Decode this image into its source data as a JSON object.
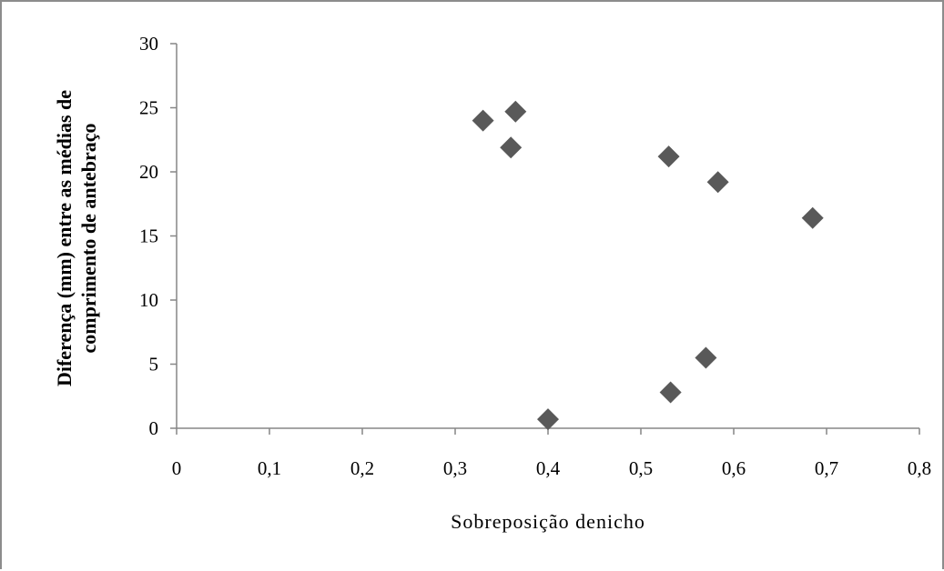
{
  "chart_data": {
    "type": "scatter",
    "xlabel": "Sobreposição denicho",
    "ylabel_lines": [
      "Diferença (mm) entre as médias de",
      "comprimento de antebraço"
    ],
    "xlim": [
      0,
      0.8
    ],
    "ylim": [
      0,
      30
    ],
    "x_ticks": [
      "0",
      "0,1",
      "0,2",
      "0,3",
      "0,4",
      "0,5",
      "0,6",
      "0,7",
      "0,8"
    ],
    "y_ticks": [
      "0",
      "5",
      "10",
      "15",
      "20",
      "25",
      "30"
    ],
    "grid": false,
    "marker": "diamond",
    "marker_color": "#595959",
    "points": [
      {
        "x": 0.33,
        "y": 24.0
      },
      {
        "x": 0.365,
        "y": 24.7
      },
      {
        "x": 0.36,
        "y": 21.9
      },
      {
        "x": 0.53,
        "y": 21.2
      },
      {
        "x": 0.583,
        "y": 19.2
      },
      {
        "x": 0.685,
        "y": 16.4
      },
      {
        "x": 0.57,
        "y": 5.5
      },
      {
        "x": 0.532,
        "y": 2.8
      },
      {
        "x": 0.4,
        "y": 0.7
      }
    ]
  }
}
